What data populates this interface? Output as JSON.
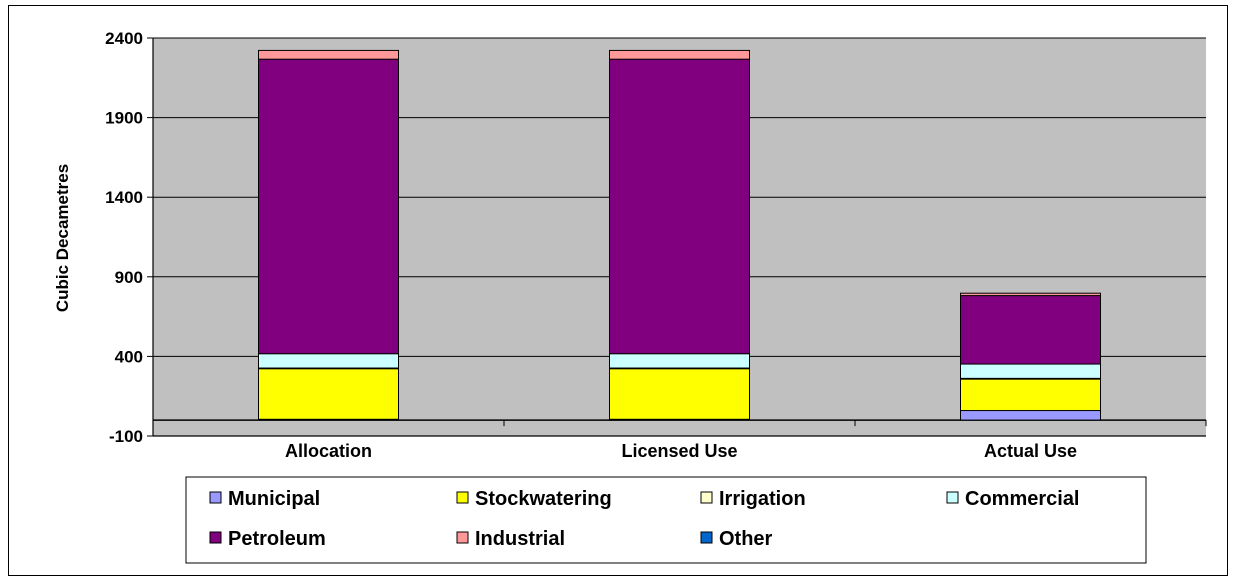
{
  "chart_data": {
    "type": "bar",
    "stacked": true,
    "title": "",
    "xlabel": "",
    "ylabel": "Cubic Decametres",
    "ylim": [
      -100,
      2400
    ],
    "yticks": [
      -100,
      400,
      900,
      1400,
      1900,
      2400
    ],
    "grid": true,
    "legend_position": "bottom",
    "categories": [
      "Allocation",
      "Licensed Use",
      "Actual Use"
    ],
    "series": [
      {
        "name": "Municipal",
        "color": "#9999FF",
        "values": [
          5,
          5,
          60
        ]
      },
      {
        "name": "Stockwatering",
        "color": "#FFFF00",
        "values": [
          320,
          320,
          200
        ]
      },
      {
        "name": "Irrigation",
        "color": "#FFFFCC",
        "values": [
          2,
          2,
          2
        ]
      },
      {
        "name": "Commercial",
        "color": "#CCFFFF",
        "values": [
          90,
          90,
          90
        ]
      },
      {
        "name": "Petroleum",
        "color": "#800080",
        "values": [
          1850,
          1850,
          430
        ]
      },
      {
        "name": "Industrial",
        "color": "#FF9999",
        "values": [
          55,
          55,
          15
        ]
      },
      {
        "name": "Other",
        "color": "#0066CC",
        "values": [
          0,
          0,
          0
        ]
      }
    ]
  }
}
